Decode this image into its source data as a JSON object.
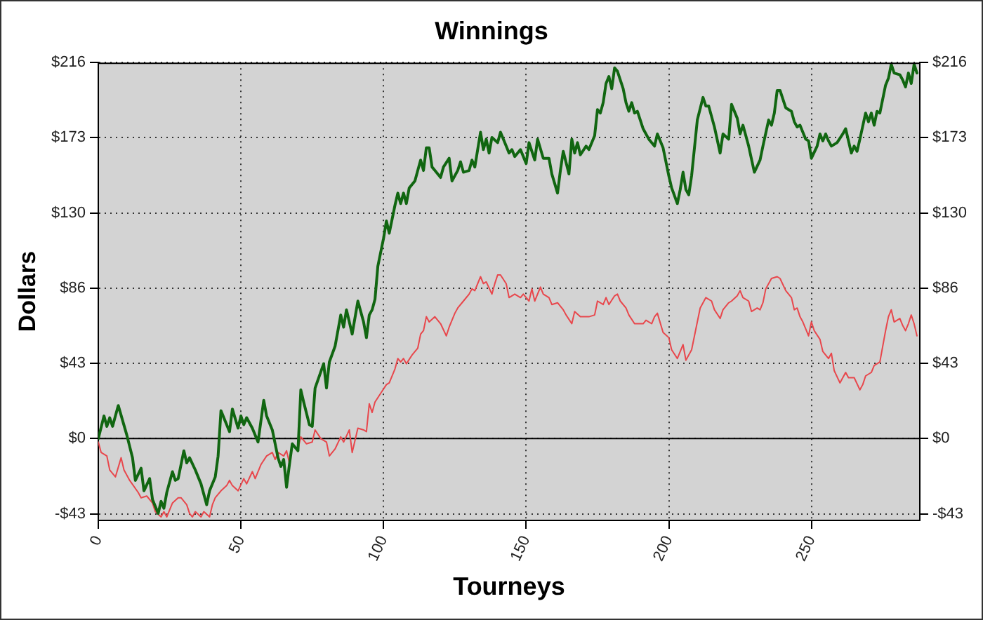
{
  "chart_data": {
    "type": "line",
    "title": "Winnings",
    "xlabel": "Tourneys",
    "ylabel": "Dollars",
    "xlim": [
      0,
      288
    ],
    "xticks": [
      0,
      50,
      100,
      150,
      200,
      250
    ],
    "ylim": [
      -47,
      216
    ],
    "yticks": [
      {
        "value": -43.2,
        "label": "-$43"
      },
      {
        "value": 0,
        "label": "$0"
      },
      {
        "value": 43.2,
        "label": "$43"
      },
      {
        "value": 86.4,
        "label": "$86"
      },
      {
        "value": 129.6,
        "label": "$130"
      },
      {
        "value": 172.8,
        "label": "$173"
      },
      {
        "value": 216,
        "label": "$216"
      }
    ],
    "y2lim": [
      -47,
      216
    ],
    "y2ticks": [
      {
        "value": -43.2,
        "label": "-$43"
      },
      {
        "value": 0,
        "label": "$0"
      },
      {
        "value": 43.2,
        "label": "$43"
      },
      {
        "value": 86.4,
        "label": "$86"
      },
      {
        "value": 129.6,
        "label": "$130"
      },
      {
        "value": 172.8,
        "label": "$173"
      },
      {
        "value": 216,
        "label": "$216"
      }
    ],
    "grid": true,
    "ref_lines": [
      {
        "axis": "y",
        "value": 0,
        "color": "#000000"
      }
    ],
    "series": [
      {
        "color": "#116611",
        "x": [
          0,
          2,
          3,
          4,
          5,
          6,
          7,
          10,
          12,
          13,
          15,
          16,
          18,
          19,
          21,
          22,
          23,
          24,
          26,
          27,
          28,
          30,
          31,
          32,
          34,
          36,
          38,
          39,
          41,
          42,
          43,
          45,
          46,
          47,
          49,
          50,
          51,
          52,
          54,
          56,
          58,
          59,
          61,
          63,
          64,
          65,
          66,
          67,
          68,
          70,
          71,
          72,
          74,
          75,
          76,
          79,
          80,
          81,
          83,
          85,
          86,
          87,
          89,
          91,
          93,
          94,
          95,
          96,
          97,
          98,
          100,
          101,
          102,
          104,
          105,
          106,
          107,
          108,
          109,
          111,
          112,
          113,
          114,
          115,
          116,
          117,
          118,
          120,
          121,
          123,
          124,
          126,
          127,
          128,
          130,
          131,
          132,
          134,
          135,
          136,
          137,
          138,
          140,
          141,
          143,
          144,
          145,
          146,
          148,
          149,
          150,
          151,
          153,
          154,
          156,
          158,
          159,
          161,
          162,
          163,
          165,
          166,
          167,
          168,
          169,
          171,
          172,
          174,
          175,
          176,
          177,
          178,
          179,
          180,
          181,
          182,
          184,
          185,
          186,
          187,
          188,
          189,
          191,
          193,
          195,
          196,
          198,
          200,
          201,
          203,
          204,
          205,
          206,
          207,
          208,
          210,
          212,
          213,
          214,
          216,
          218,
          219,
          221,
          222,
          224,
          225,
          226,
          228,
          230,
          232,
          233,
          235,
          236,
          237,
          238,
          239,
          241,
          243,
          244,
          245,
          246,
          247,
          248,
          249,
          250,
          252,
          253,
          254,
          255,
          256,
          257,
          259,
          261,
          262,
          264,
          265,
          266,
          267,
          269,
          270,
          271,
          272,
          273,
          274,
          276,
          277,
          278,
          279,
          281,
          282,
          283,
          284,
          285,
          286,
          287
        ],
        "values": [
          0,
          13,
          7,
          12,
          7,
          13,
          19,
          2,
          -11,
          -24,
          -17,
          -30,
          -23,
          -35,
          -43,
          -36,
          -40,
          -31,
          -19,
          -24,
          -23,
          -7,
          -14,
          -11,
          -18,
          -26,
          -38,
          -30,
          -22,
          -10,
          16,
          8,
          4,
          17,
          6,
          13,
          8,
          12,
          6,
          -2,
          22,
          13,
          5,
          -11,
          -16,
          -12,
          -28,
          -15,
          -3,
          -7,
          28,
          21,
          8,
          7,
          29,
          43,
          29,
          44,
          53,
          71,
          64,
          74,
          60,
          79,
          67,
          58,
          71,
          74,
          80,
          99,
          115,
          125,
          118,
          134,
          141,
          135,
          141,
          135,
          144,
          148,
          154,
          160,
          154,
          167,
          167,
          156,
          154,
          150,
          156,
          161,
          148,
          154,
          159,
          153,
          154,
          160,
          156,
          176,
          166,
          172,
          164,
          173,
          170,
          176,
          168,
          164,
          166,
          162,
          166,
          162,
          158,
          170,
          160,
          172,
          161,
          161,
          152,
          141,
          154,
          165,
          152,
          172,
          164,
          170,
          163,
          168,
          166,
          174,
          189,
          187,
          193,
          204,
          208,
          201,
          213,
          211,
          201,
          193,
          188,
          193,
          187,
          188,
          178,
          172,
          168,
          175,
          167,
          151,
          144,
          135,
          143,
          153,
          143,
          140,
          151,
          183,
          196,
          191,
          191,
          179,
          164,
          175,
          172,
          192,
          184,
          175,
          180,
          168,
          153,
          160,
          168,
          183,
          180,
          187,
          200,
          200,
          190,
          188,
          182,
          179,
          180,
          176,
          172,
          171,
          161,
          168,
          175,
          171,
          175,
          171,
          168,
          170,
          175,
          178,
          164,
          168,
          165,
          172,
          187,
          182,
          187,
          180,
          188,
          187,
          203,
          207,
          215,
          210,
          209,
          206,
          202,
          210,
          204,
          215,
          210
        ]
      },
      {
        "color": "#e8474c",
        "x": [
          0,
          1,
          3,
          4,
          6,
          8,
          9,
          11,
          14,
          15,
          17,
          19,
          20,
          22,
          23,
          24,
          26,
          28,
          29,
          31,
          32,
          33,
          34,
          36,
          37,
          39,
          40,
          41,
          43,
          45,
          46,
          47,
          49,
          51,
          52,
          54,
          55,
          57,
          59,
          61,
          62,
          63,
          65,
          66,
          67,
          68,
          70,
          71,
          73,
          75,
          76,
          78,
          80,
          81,
          83,
          85,
          86,
          88,
          89,
          91,
          93,
          94,
          95,
          96,
          97,
          99,
          101,
          102,
          104,
          105,
          106,
          107,
          108,
          110,
          112,
          113,
          114,
          115,
          116,
          118,
          120,
          122,
          123,
          125,
          126,
          128,
          130,
          131,
          132,
          134,
          135,
          136,
          138,
          139,
          140,
          141,
          143,
          144,
          146,
          148,
          149,
          151,
          152,
          153,
          155,
          156,
          158,
          159,
          161,
          163,
          164,
          166,
          167,
          169,
          172,
          174,
          175,
          177,
          178,
          179,
          181,
          182,
          183,
          185,
          186,
          188,
          191,
          192,
          194,
          195,
          196,
          198,
          200,
          201,
          203,
          205,
          206,
          208,
          210,
          211,
          213,
          215,
          216,
          218,
          219,
          221,
          222,
          224,
          225,
          226,
          228,
          229,
          231,
          232,
          233,
          234,
          236,
          238,
          239,
          241,
          243,
          244,
          245,
          246,
          247,
          248,
          249,
          250,
          251,
          253,
          254,
          256,
          257,
          258,
          260,
          262,
          263,
          265,
          267,
          268,
          269,
          271,
          272,
          274,
          276,
          277,
          278,
          279,
          281,
          282,
          283,
          284,
          285,
          286,
          287
        ],
        "values": [
          -2,
          -8,
          -10,
          -18,
          -22,
          -11,
          -18,
          -24,
          -31,
          -34,
          -33,
          -37,
          -42,
          -45,
          -42,
          -45,
          -37,
          -34,
          -34,
          -38,
          -43,
          -45,
          -42,
          -45,
          -42,
          -45,
          -38,
          -34,
          -30,
          -27,
          -24,
          -27,
          -30,
          -23,
          -26,
          -19,
          -23,
          -15,
          -10,
          -8,
          -12,
          -8,
          -10,
          -7,
          -14,
          -4,
          -6,
          1,
          -3,
          -2,
          5,
          0,
          -2,
          -10,
          -6,
          1,
          -2,
          5,
          -8,
          6,
          5,
          4,
          20,
          15,
          21,
          26,
          31,
          32,
          40,
          46,
          44,
          46,
          43,
          48,
          52,
          60,
          62,
          70,
          67,
          70,
          66,
          59,
          64,
          72,
          75,
          79,
          83,
          86,
          85,
          93,
          89,
          90,
          83,
          89,
          94,
          94,
          89,
          81,
          83,
          81,
          83,
          79,
          86,
          79,
          87,
          83,
          81,
          77,
          78,
          74,
          71,
          66,
          73,
          70,
          70,
          71,
          79,
          77,
          81,
          77,
          82,
          83,
          79,
          75,
          71,
          66,
          66,
          68,
          66,
          70,
          72,
          61,
          58,
          51,
          46,
          54,
          45,
          51,
          67,
          75,
          81,
          79,
          74,
          69,
          74,
          78,
          79,
          82,
          85,
          81,
          79,
          73,
          75,
          74,
          78,
          86,
          92,
          93,
          92,
          85,
          81,
          74,
          75,
          70,
          67,
          63,
          59,
          67,
          62,
          57,
          50,
          46,
          49,
          39,
          32,
          38,
          35,
          35,
          28,
          31,
          36,
          38,
          42,
          44,
          62,
          70,
          74,
          67,
          69,
          65,
          62,
          66,
          71,
          66,
          59
        ]
      }
    ]
  }
}
